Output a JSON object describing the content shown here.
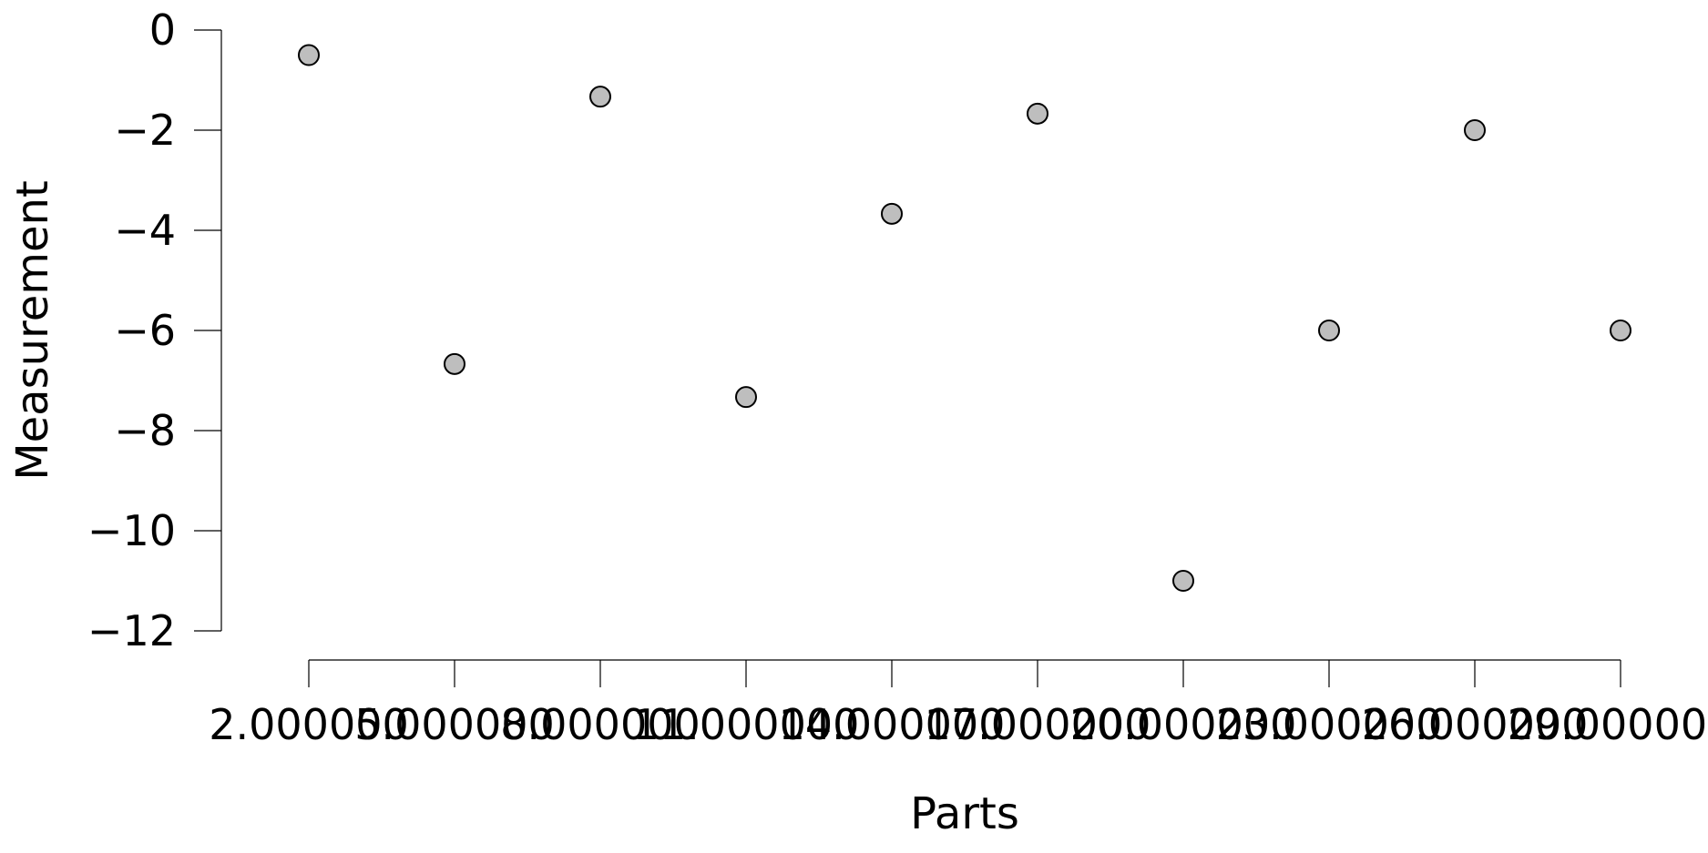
{
  "chart_data": {
    "type": "scatter",
    "title": "",
    "xlabel": "Parts",
    "ylabel": "Measurement",
    "x": [
      2,
      5,
      8,
      11,
      14,
      17,
      20,
      23,
      26,
      29
    ],
    "y": [
      -0.5,
      -6.67,
      -1.33,
      -7.33,
      -3.67,
      -1.67,
      -11,
      -6,
      -2,
      -6
    ],
    "x_ticks": [
      2,
      5,
      8,
      11,
      14,
      17,
      20,
      23,
      26,
      29
    ],
    "x_tick_labels": [
      "2.000000",
      "5.000000",
      "8.000000",
      "11.000000",
      "14.000000",
      "17.000000",
      "20.000000",
      "23.000000",
      "26.000000",
      "29.000000"
    ],
    "y_ticks": [
      0,
      -2,
      -4,
      -6,
      -8,
      -10,
      -12
    ],
    "y_tick_labels": [
      "0",
      "−2",
      "−4",
      "−6",
      "−8",
      "−10",
      "−12"
    ],
    "xlim": [
      2,
      29
    ],
    "ylim": [
      -12,
      0
    ],
    "grid": false,
    "legend": "none",
    "marker_fill": "#bebebe",
    "marker_edge": "#000000"
  }
}
